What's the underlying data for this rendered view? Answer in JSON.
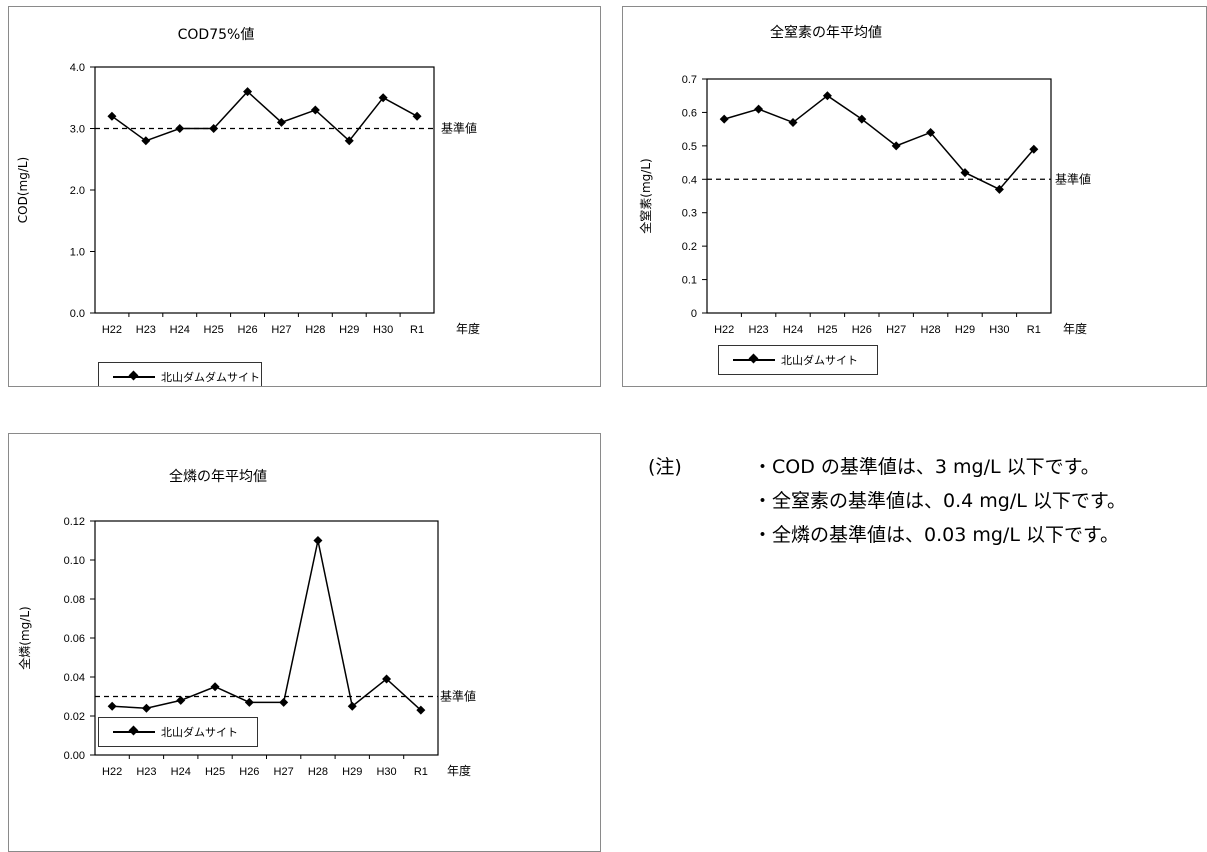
{
  "chart_data": [
    {
      "id": "cod",
      "type": "line",
      "title": "COD75%値",
      "ylabel": "COD(mg/L)",
      "xlabel": "年度",
      "categories": [
        "H22",
        "H23",
        "H24",
        "H25",
        "H26",
        "H27",
        "H28",
        "H29",
        "H30",
        "R1"
      ],
      "series": [
        {
          "name": "北山ダムダムサイト",
          "values": [
            3.2,
            2.8,
            3.0,
            3.0,
            3.6,
            3.1,
            3.3,
            2.8,
            3.5,
            3.2
          ]
        }
      ],
      "yticks": [
        "0.0",
        "1.0",
        "2.0",
        "3.0",
        "4.0"
      ],
      "ylim": [
        0,
        4
      ],
      "reference": {
        "label": "基準値",
        "value": 3.0
      },
      "legend_position": "bottom-left",
      "grid": false
    },
    {
      "id": "tn",
      "type": "line",
      "title": "全窒素の年平均値",
      "ylabel": "全窒素(mg/L)",
      "xlabel": "年度",
      "categories": [
        "H22",
        "H23",
        "H24",
        "H25",
        "H26",
        "H27",
        "H28",
        "H29",
        "H30",
        "R1"
      ],
      "series": [
        {
          "name": "北山ダムサイト",
          "values": [
            0.58,
            0.61,
            0.57,
            0.65,
            0.58,
            0.5,
            0.54,
            0.42,
            0.37,
            0.49
          ]
        }
      ],
      "yticks": [
        "0",
        "0.1",
        "0.2",
        "0.3",
        "0.4",
        "0.5",
        "0.6",
        "0.7"
      ],
      "ylim": [
        0,
        0.7
      ],
      "reference": {
        "label": "基準値",
        "value": 0.4
      },
      "legend_position": "bottom-left",
      "grid": false
    },
    {
      "id": "tp",
      "type": "line",
      "title": "全燐の年平均値",
      "ylabel": "全燐(mg/L)",
      "xlabel": "年度",
      "categories": [
        "H22",
        "H23",
        "H24",
        "H25",
        "H26",
        "H27",
        "H28",
        "H29",
        "H30",
        "R1"
      ],
      "series": [
        {
          "name": "北山ダムサイト",
          "values": [
            0.025,
            0.024,
            0.028,
            0.035,
            0.027,
            0.027,
            0.11,
            0.025,
            0.039,
            0.023
          ]
        }
      ],
      "yticks": [
        "0.00",
        "0.02",
        "0.04",
        "0.06",
        "0.08",
        "0.10",
        "0.12"
      ],
      "ylim": [
        0,
        0.12
      ],
      "reference": {
        "label": "基準値",
        "value": 0.03
      },
      "legend_position": "bottom-left",
      "grid": false
    }
  ],
  "notes": {
    "marker": "(注)",
    "items": [
      "・COD の基準値は、3 mg/L 以下です。",
      "・全窒素の基準値は、0.4 mg/L 以下です。",
      "・全燐の基準値は、0.03 mg/L 以下です。"
    ]
  }
}
